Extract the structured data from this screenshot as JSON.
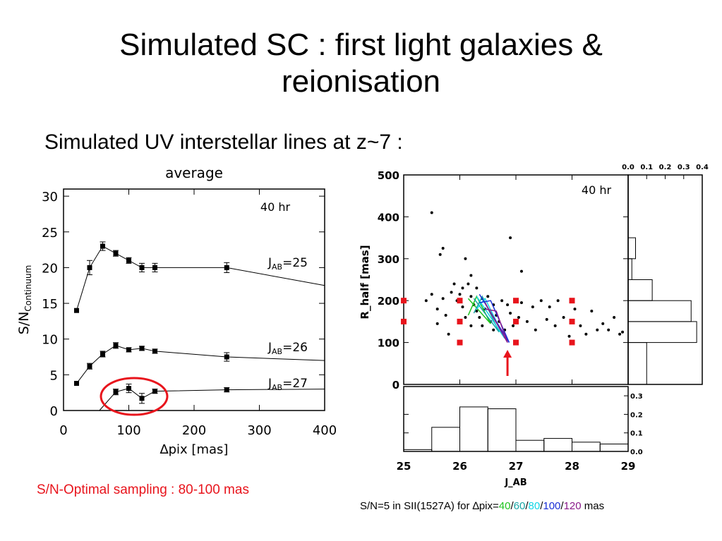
{
  "slide": {
    "title_line1": "Simulated SC : first light galaxies &",
    "title_line2": "reionisation",
    "subtitle": "Simulated UV interstellar lines at z~7 :",
    "caption_left": "S/N-Optimal sampling : 80-100 mas",
    "caption_right": {
      "prefix": "S/N=5 in SII(1527A) for ∆pix=",
      "v40": "40",
      "v60": "60",
      "v80": "80",
      "v100": "100",
      "v120": "120",
      "sep": "/",
      "suffix": " mas"
    }
  },
  "colors": {
    "highlight": "#e8141c",
    "green": "#1ec41e",
    "teal": "#1aa6a6",
    "cyan": "#10d6e6",
    "blue": "#1a2fd6",
    "purple": "#8a1a8a"
  },
  "chart_data": [
    {
      "type": "line",
      "title": "average",
      "xlabel": "∆pix [mas]",
      "ylabel": "S/N_Continuum",
      "ylabel_main": "S/N",
      "ylabel_sub": "Continuum",
      "xlim": [
        0,
        400
      ],
      "ylim": [
        0,
        31
      ],
      "xticks": [
        0,
        100,
        200,
        300,
        400
      ],
      "yticks": [
        0,
        5,
        10,
        15,
        20,
        25,
        30
      ],
      "annotation": "40 hr",
      "series": [
        {
          "name": "J_AB=25",
          "label_main": "J",
          "label_sub": "AB",
          "label_val": "=25",
          "x": [
            20,
            40,
            60,
            80,
            100,
            120,
            140,
            250,
            400
          ],
          "y": [
            14,
            20,
            23,
            22,
            21,
            20,
            20,
            20,
            17.5
          ],
          "err": [
            0,
            1,
            0.6,
            0.4,
            0.4,
            0.6,
            0.6,
            0.7,
            0
          ]
        },
        {
          "name": "J_AB=26",
          "label_main": "J",
          "label_sub": "AB",
          "label_val": "=26",
          "x": [
            20,
            40,
            60,
            80,
            100,
            120,
            140,
            250,
            400
          ],
          "y": [
            3.8,
            6.2,
            7.9,
            9.1,
            8.5,
            8.7,
            8.3,
            7.5,
            7
          ],
          "err": [
            0,
            0.4,
            0.4,
            0.4,
            0.3,
            0.3,
            0.3,
            0.6,
            0
          ]
        },
        {
          "name": "J_AB=27",
          "label_main": "J",
          "label_sub": "AB",
          "label_val": "=27",
          "x": [
            55,
            80,
            100,
            120,
            140,
            250,
            400
          ],
          "y": [
            0,
            2.6,
            3.1,
            1.7,
            2.7,
            2.9,
            3
          ],
          "err": [
            0,
            0.4,
            0.6,
            0.7,
            0.3,
            0.3,
            0
          ]
        }
      ]
    },
    {
      "type": "scatter",
      "xlabel": "J_AB",
      "ylabel": "R_half [mas]",
      "xlim": [
        25,
        29
      ],
      "ylim": [
        0,
        500
      ],
      "xticks": [
        25,
        26,
        27,
        28,
        29
      ],
      "yticks": [
        0,
        100,
        200,
        300,
        400,
        500
      ],
      "annotation": "40 hr",
      "points": [
        [
          25.5,
          410
        ],
        [
          25.7,
          325
        ],
        [
          25.65,
          310
        ],
        [
          26.1,
          300
        ],
        [
          26.9,
          350
        ],
        [
          26.2,
          260
        ],
        [
          27.1,
          270
        ],
        [
          25.4,
          200
        ],
        [
          25.5,
          215
        ],
        [
          25.6,
          180
        ],
        [
          25.6,
          145
        ],
        [
          25.7,
          205
        ],
        [
          25.75,
          165
        ],
        [
          25.8,
          120
        ],
        [
          25.85,
          220
        ],
        [
          25.9,
          240
        ],
        [
          25.95,
          200
        ],
        [
          26.0,
          215
        ],
        [
          26.05,
          185
        ],
        [
          26.05,
          230
        ],
        [
          26.1,
          160
        ],
        [
          26.15,
          240
        ],
        [
          26.2,
          210
        ],
        [
          26.2,
          140
        ],
        [
          26.25,
          190
        ],
        [
          26.3,
          175
        ],
        [
          26.3,
          230
        ],
        [
          26.35,
          160
        ],
        [
          26.4,
          205
        ],
        [
          26.4,
          140
        ],
        [
          26.45,
          180
        ],
        [
          26.5,
          210
        ],
        [
          26.55,
          150
        ],
        [
          26.6,
          190
        ],
        [
          26.6,
          130
        ],
        [
          26.65,
          165
        ],
        [
          26.7,
          150
        ],
        [
          26.75,
          200
        ],
        [
          26.8,
          130
        ],
        [
          26.85,
          190
        ],
        [
          26.9,
          170
        ],
        [
          26.95,
          140
        ],
        [
          27.0,
          200
        ],
        [
          27.05,
          160
        ],
        [
          27.1,
          195
        ],
        [
          27.2,
          150
        ],
        [
          27.3,
          185
        ],
        [
          27.35,
          130
        ],
        [
          27.45,
          200
        ],
        [
          27.55,
          155
        ],
        [
          27.6,
          185
        ],
        [
          27.7,
          140
        ],
        [
          27.75,
          200
        ],
        [
          27.85,
          160
        ],
        [
          27.95,
          115
        ],
        [
          28.05,
          180
        ],
        [
          28.15,
          140
        ],
        [
          28.25,
          120
        ],
        [
          28.35,
          175
        ],
        [
          28.45,
          130
        ],
        [
          28.55,
          145
        ],
        [
          28.65,
          130
        ],
        [
          28.75,
          160
        ],
        [
          28.85,
          120
        ],
        [
          28.9,
          125
        ]
      ],
      "red_markers": [
        [
          25.0,
          200
        ],
        [
          25.0,
          150
        ],
        [
          26.0,
          200
        ],
        [
          26.0,
          150
        ],
        [
          26.0,
          100
        ],
        [
          27.0,
          200
        ],
        [
          27.0,
          150
        ],
        [
          27.0,
          100
        ],
        [
          28.0,
          200
        ],
        [
          28.0,
          150
        ],
        [
          28.0,
          100
        ]
      ],
      "tracks": [
        {
          "name": "40",
          "color": "#1ec41e",
          "pts": [
            [
              26.15,
              205
            ],
            [
              26.55,
              145
            ],
            [
              26.3,
              210
            ],
            [
              26.15,
              165
            ]
          ]
        },
        {
          "name": "60",
          "color": "#1aa6a6",
          "pts": [
            [
              26.25,
              205
            ],
            [
              26.7,
              125
            ],
            [
              26.4,
              210
            ],
            [
              26.25,
              170
            ]
          ]
        },
        {
          "name": "80",
          "color": "#10d6e6",
          "pts": [
            [
              26.3,
              210
            ],
            [
              26.8,
              110
            ],
            [
              26.45,
              205
            ],
            [
              26.3,
              180
            ]
          ]
        },
        {
          "name": "100",
          "color": "#1a2fd6",
          "pts": [
            [
              26.35,
              215
            ],
            [
              26.88,
              100
            ],
            [
              26.55,
              200
            ],
            [
              26.35,
              195
            ]
          ]
        },
        {
          "name": "120",
          "color": "#8a1a8a",
          "pts": [
            [
              26.45,
              195
            ],
            [
              26.85,
              100
            ],
            [
              26.65,
              175
            ],
            [
              26.45,
              180
            ]
          ]
        }
      ],
      "arrow_x": 26.85
    },
    {
      "type": "histogram",
      "orientation": "vertical",
      "xlim": [
        0,
        0.4
      ],
      "xticks": [
        "0.0",
        "0.1",
        "0.2",
        "0.3",
        "0.4"
      ],
      "bins_y": [
        0,
        100,
        150,
        200,
        250,
        300,
        350
      ],
      "values": [
        0.1,
        0.37,
        0.34,
        0.13,
        0.02,
        0.04
      ]
    },
    {
      "type": "histogram",
      "orientation": "horizontal",
      "ylim": [
        0,
        0.35
      ],
      "yticks": [
        "0.0",
        "0.1",
        "0.2",
        "0.3"
      ],
      "bins_x": [
        25,
        25.5,
        26,
        26.5,
        27,
        27.5,
        28,
        28.5,
        29
      ],
      "values": [
        0.01,
        0.13,
        0.24,
        0.23,
        0.06,
        0.07,
        0.05,
        0.04
      ]
    }
  ]
}
